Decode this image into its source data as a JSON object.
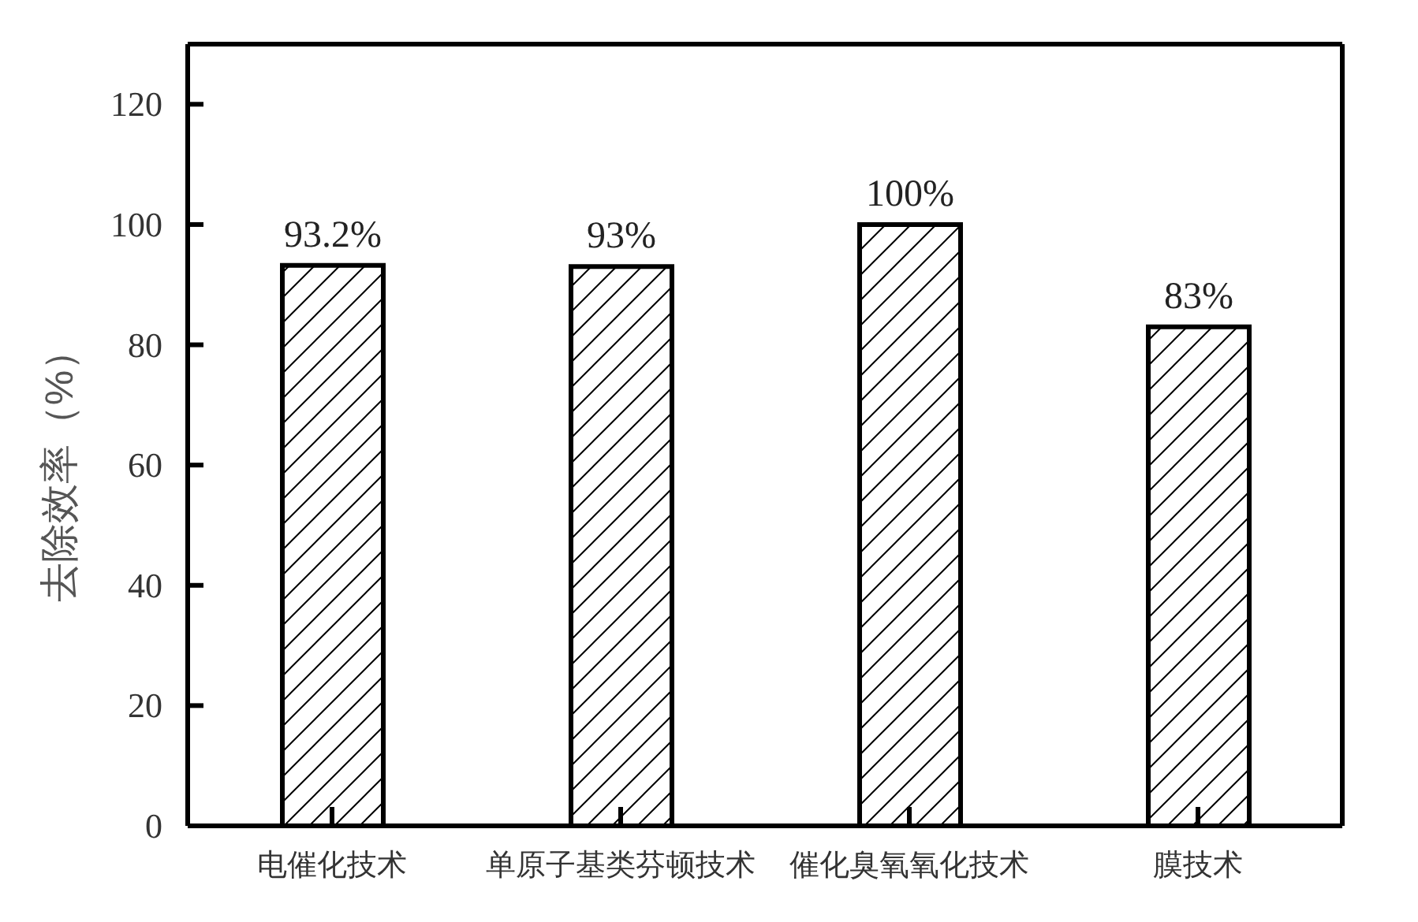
{
  "chart_data": {
    "type": "bar",
    "ylabel": "去除效率（%）",
    "categories": [
      "电催化技术",
      "单原子基类芬顿技术",
      "催化臭氧氧化技术",
      "膜技术"
    ],
    "values": [
      93.2,
      93,
      100,
      83
    ],
    "color": "#000000",
    "value_labels": [
      "93.2%",
      "93%",
      "100%",
      "83%"
    ],
    "ylim": [
      0,
      130
    ],
    "yticks": [
      0,
      20,
      40,
      60,
      80,
      100,
      120
    ]
  }
}
